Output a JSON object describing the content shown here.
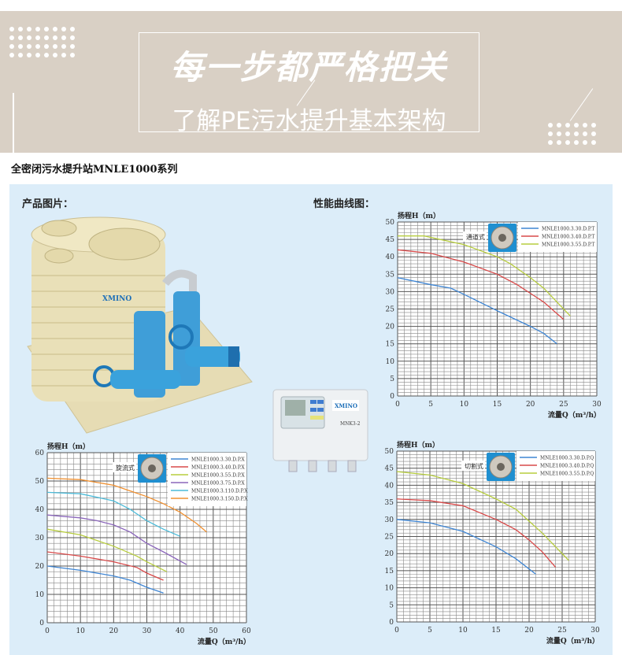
{
  "banner": {
    "headline": "每一步都严格把关",
    "subline": "了解PE污水提升基本架构"
  },
  "series_title": "全密闭污水提升站MNLE1000系列",
  "labels": {
    "product_image": "产品图片：",
    "performance_curves": "性能曲线图："
  },
  "product": {
    "brand_logo": "XMINO",
    "controller_model": "MNK3-2"
  },
  "colors": {
    "blue": "#3f86d4",
    "red": "#d94a4a",
    "green": "#b7cd3f",
    "purple": "#8b66bb",
    "cyan": "#4bbbd9",
    "orange": "#f09030",
    "banner_bg": "#d9d0c5",
    "panel_bg": "#dcedf9"
  },
  "chart_data": [
    {
      "type": "line",
      "impeller_label": "通道式",
      "ylabel": "扬程H（m）",
      "xlabel": "流量Q（m³/h）",
      "xlim": [
        0,
        30
      ],
      "ylim": [
        0,
        50
      ],
      "xticks": [
        0,
        5,
        10,
        15,
        20,
        25,
        30
      ],
      "yticks": [
        0,
        5,
        10,
        15,
        20,
        25,
        30,
        35,
        40,
        45,
        50
      ],
      "grid": true,
      "legend": "top-right",
      "series": [
        {
          "name": "MNLE1000.3.30.D.P.T",
          "color": "#3f86d4",
          "points": [
            [
              0,
              34
            ],
            [
              5,
              32
            ],
            [
              8,
              31
            ],
            [
              10,
              29.2
            ],
            [
              15,
              24.5
            ],
            [
              20,
              20
            ],
            [
              22,
              18
            ],
            [
              24,
              15
            ]
          ]
        },
        {
          "name": "MNLE1000.3.40.D.P.T",
          "color": "#d94a4a",
          "points": [
            [
              0,
              42
            ],
            [
              5,
              41
            ],
            [
              10,
              38.5
            ],
            [
              15,
              35
            ],
            [
              18,
              32
            ],
            [
              20,
              29.5
            ],
            [
              22,
              27
            ],
            [
              25,
              22
            ]
          ]
        },
        {
          "name": "MNLE1000.3.55.D.P.T",
          "color": "#b7cd3f",
          "points": [
            [
              0,
              46
            ],
            [
              4,
              46
            ],
            [
              10,
              43.5
            ],
            [
              15,
              40
            ],
            [
              17,
              38
            ],
            [
              20,
              34
            ],
            [
              22,
              31
            ],
            [
              24,
              27
            ],
            [
              26,
              23
            ]
          ]
        }
      ]
    },
    {
      "type": "line",
      "impeller_label": "旋流式",
      "ylabel": "扬程H（m）",
      "xlabel": "流量Q（m³/h）",
      "xlim": [
        0,
        60
      ],
      "ylim": [
        0,
        60
      ],
      "xticks": [
        0,
        10,
        20,
        30,
        40,
        50,
        60
      ],
      "yticks": [
        0,
        10,
        20,
        30,
        40,
        50,
        60
      ],
      "grid": true,
      "legend": "top-right",
      "series": [
        {
          "name": "MNLE1000.3.30.D.P.X",
          "color": "#3f86d4",
          "points": [
            [
              0,
              20
            ],
            [
              10,
              18.5
            ],
            [
              20,
              16.5
            ],
            [
              25,
              15
            ],
            [
              30,
              12.5
            ],
            [
              35,
              10.5
            ]
          ]
        },
        {
          "name": "MNLE1000.3.40.D.P.X",
          "color": "#d94a4a",
          "points": [
            [
              0,
              25
            ],
            [
              10,
              23.5
            ],
            [
              20,
              21.5
            ],
            [
              27,
              19.5
            ],
            [
              30,
              17.5
            ],
            [
              35,
              15
            ]
          ]
        },
        {
          "name": "MNLE1000.3.55.D.P.X",
          "color": "#b7cd3f",
          "points": [
            [
              0,
              33
            ],
            [
              10,
              31
            ],
            [
              20,
              27
            ],
            [
              27,
              23.5
            ],
            [
              30,
              21.5
            ],
            [
              36,
              18
            ]
          ]
        },
        {
          "name": "MNLE1000.3.75.D.P.X",
          "color": "#8b66bb",
          "points": [
            [
              0,
              38
            ],
            [
              10,
              37
            ],
            [
              15,
              36
            ],
            [
              20,
              34.5
            ],
            [
              25,
              32
            ],
            [
              30,
              28
            ],
            [
              35,
              25
            ],
            [
              42,
              20.5
            ]
          ]
        },
        {
          "name": "MNLE1000.3.110.D.P.X",
          "color": "#4bbbd9",
          "points": [
            [
              0,
              46
            ],
            [
              10,
              45.5
            ],
            [
              20,
              43
            ],
            [
              25,
              40
            ],
            [
              30,
              36
            ],
            [
              35,
              33
            ],
            [
              40,
              30.5
            ]
          ]
        },
        {
          "name": "MNLE1000.3.150.D.P.X",
          "color": "#f09030",
          "points": [
            [
              0,
              51
            ],
            [
              10,
              50.5
            ],
            [
              20,
              48.5
            ],
            [
              25,
              46.5
            ],
            [
              30,
              44.5
            ],
            [
              35,
              42
            ],
            [
              40,
              39
            ],
            [
              45,
              35
            ],
            [
              48,
              32
            ]
          ]
        }
      ]
    },
    {
      "type": "line",
      "impeller_label": "切割式",
      "ylabel": "扬程H（m）",
      "xlabel": "流量Q（m³/h）",
      "xlim": [
        0,
        30
      ],
      "ylim": [
        0,
        50
      ],
      "xticks": [
        0,
        5,
        10,
        15,
        20,
        25,
        30
      ],
      "yticks": [
        0,
        5,
        10,
        15,
        20,
        25,
        30,
        35,
        40,
        45,
        50
      ],
      "grid": true,
      "legend": "top-right",
      "series": [
        {
          "name": "MNLE1000.3.30.D.P.Q",
          "color": "#3f86d4",
          "points": [
            [
              0,
              30
            ],
            [
              5,
              29
            ],
            [
              10,
              26.5
            ],
            [
              15,
              22
            ],
            [
              18,
              18.5
            ],
            [
              21,
              14
            ]
          ]
        },
        {
          "name": "MNLE1000.3.40.D.P.Q",
          "color": "#d94a4a",
          "points": [
            [
              0,
              36
            ],
            [
              5,
              35.5
            ],
            [
              10,
              34
            ],
            [
              15,
              30
            ],
            [
              18,
              27
            ],
            [
              20,
              24
            ],
            [
              22,
              20.5
            ],
            [
              24,
              16
            ]
          ]
        },
        {
          "name": "MNLE1000.3.55.D.P.Q",
          "color": "#b7cd3f",
          "points": [
            [
              0,
              44
            ],
            [
              5,
              43
            ],
            [
              10,
              40.5
            ],
            [
              15,
              36
            ],
            [
              18,
              33
            ],
            [
              20,
              29.5
            ],
            [
              22,
              26
            ],
            [
              26,
              18
            ]
          ]
        }
      ]
    }
  ]
}
